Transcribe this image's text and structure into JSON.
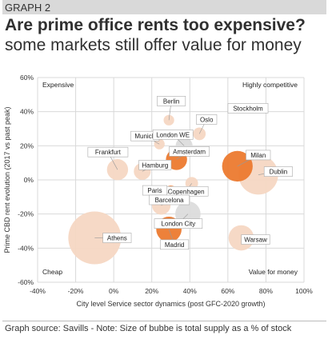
{
  "header": {
    "graph_label": "GRAPH 2",
    "title": "Are prime office rents too expensive?",
    "subtitle": "some markets still offer value for money"
  },
  "footer": {
    "text": "Graph source: Savills  - Note: Size of bubbe is total supply as a % of stock"
  },
  "colors": {
    "orange": "#ec7a2f",
    "peach": "#f6d7c3",
    "grey": "#dcdcdc",
    "grid": "#d9d9d9",
    "accent_header": "#d9d9d9"
  },
  "chart_data": {
    "type": "scatter",
    "xlabel": "City level Service sector dynamics (post GFC-2020 growth)",
    "ylabel": "Prime CBD rent evolution (2017 vs past peak)",
    "xlim": [
      -40,
      100
    ],
    "ylim": [
      -60,
      60
    ],
    "x_ticks": [
      "-40%",
      "-20%",
      "0%",
      "20%",
      "40%",
      "60%",
      "80%",
      "100%"
    ],
    "y_ticks": [
      "60%",
      "40%",
      "20%",
      "0%",
      "-20%",
      "-40%",
      "-60%"
    ],
    "grid": true,
    "quadrant_labels": {
      "top_left": "Expensive",
      "top_right": "Highly competitive",
      "bottom_left": "Cheap",
      "bottom_right": "Value for money"
    },
    "points": [
      {
        "name": "Berlin",
        "x": 29,
        "y": 35,
        "size": 2.0,
        "color": "peach"
      },
      {
        "name": "Oslo",
        "x": 45,
        "y": 27,
        "size": 2.4,
        "color": "peach"
      },
      {
        "name": "Stockholm",
        "x": 63,
        "y": 42,
        "size": 0.7,
        "color": "peach"
      },
      {
        "name": "Munich",
        "x": 24,
        "y": 21,
        "size": 2.0,
        "color": "peach"
      },
      {
        "name": "London WE",
        "x": 37,
        "y": 20,
        "size": 3.2,
        "color": "grey"
      },
      {
        "name": "Amsterdam",
        "x": 33,
        "y": 12,
        "size": 4.0,
        "color": "orange"
      },
      {
        "name": "Milan",
        "x": 65,
        "y": 8,
        "size": 5.8,
        "color": "orange"
      },
      {
        "name": "Frankfurt",
        "x": 2,
        "y": 6,
        "size": 4.0,
        "color": "peach"
      },
      {
        "name": "Hamburg",
        "x": 15,
        "y": 5,
        "size": 3.2,
        "color": "peach"
      },
      {
        "name": "Dublin",
        "x": 76,
        "y": 3,
        "size": 7.5,
        "color": "peach"
      },
      {
        "name": "Copenhagen",
        "x": 41,
        "y": -2,
        "size": 2.4,
        "color": "peach"
      },
      {
        "name": "Paris",
        "x": 30,
        "y": -8,
        "size": 3.0,
        "color": "orange"
      },
      {
        "name": "Barcelona",
        "x": 25,
        "y": -15,
        "size": 3.5,
        "color": "peach"
      },
      {
        "name": "London City",
        "x": 39,
        "y": -20,
        "size": 4.8,
        "color": "grey"
      },
      {
        "name": "Madrid",
        "x": 29,
        "y": -29,
        "size": 4.8,
        "color": "orange"
      },
      {
        "name": "Athens",
        "x": -10,
        "y": -34,
        "size": 10.0,
        "color": "peach"
      },
      {
        "name": "Warsaw",
        "x": 67,
        "y": -34,
        "size": 4.8,
        "color": "peach"
      }
    ]
  }
}
